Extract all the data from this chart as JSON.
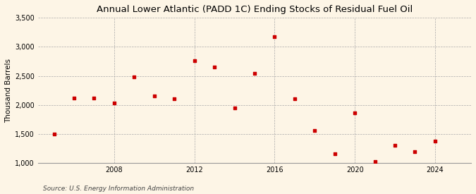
{
  "title": "Annual Lower Atlantic (PADD 1C) Ending Stocks of Residual Fuel Oil",
  "ylabel": "Thousand Barrels",
  "source": "Source: U.S. Energy Information Administration",
  "years": [
    2005,
    2006,
    2007,
    2008,
    2009,
    2010,
    2011,
    2012,
    2013,
    2014,
    2015,
    2016,
    2017,
    2018,
    2019,
    2020,
    2021,
    2022,
    2023,
    2024
  ],
  "values": [
    1503,
    2120,
    2120,
    2030,
    2480,
    2160,
    2110,
    2760,
    2650,
    1950,
    2540,
    3180,
    2110,
    1560,
    1155,
    1860,
    1030,
    1300,
    1200,
    1380
  ],
  "marker_color": "#cc0000",
  "background_color": "#fdf5e6",
  "grid_color": "#aaaaaa",
  "ylim": [
    1000,
    3500
  ],
  "yticks": [
    1000,
    1500,
    2000,
    2500,
    3000,
    3500
  ],
  "xticks": [
    2008,
    2012,
    2016,
    2020,
    2024
  ],
  "title_fontsize": 9.5,
  "label_fontsize": 7.5,
  "tick_fontsize": 7,
  "source_fontsize": 6.5
}
